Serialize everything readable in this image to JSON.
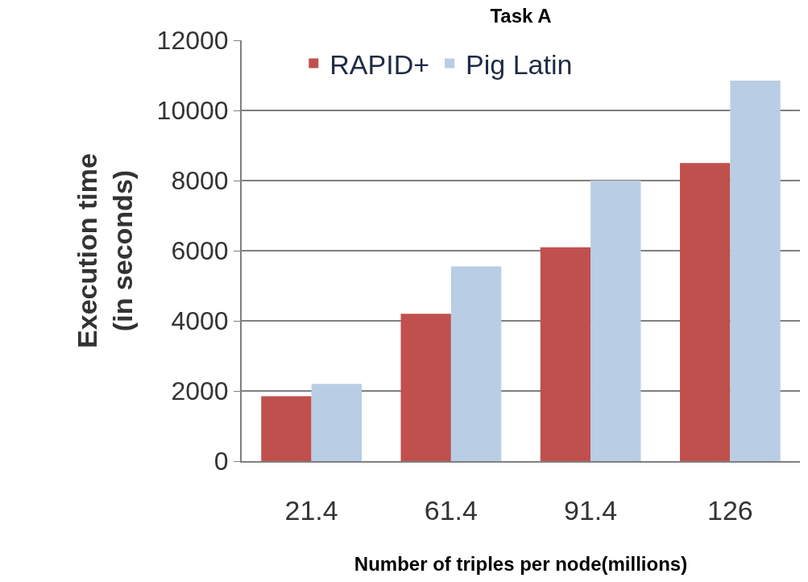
{
  "chart_data": {
    "type": "bar",
    "title": "Task A",
    "xlabel": "Number of triples per node(millions)",
    "ylabel": "Execution time\n(in seconds)",
    "categories": [
      "21.4",
      "61.4",
      "91.4",
      "126"
    ],
    "series": [
      {
        "name": "RAPID+",
        "color": "#c0504d",
        "values": [
          1850,
          4200,
          6100,
          8500
        ]
      },
      {
        "name": "Pig Latin",
        "color": "#b9cde5",
        "values": [
          2200,
          5550,
          8000,
          10850
        ]
      }
    ],
    "ylim": [
      0,
      12000
    ],
    "yticks": [
      0,
      2000,
      4000,
      6000,
      8000,
      10000,
      12000
    ],
    "grid": "y",
    "legend": "top left"
  }
}
